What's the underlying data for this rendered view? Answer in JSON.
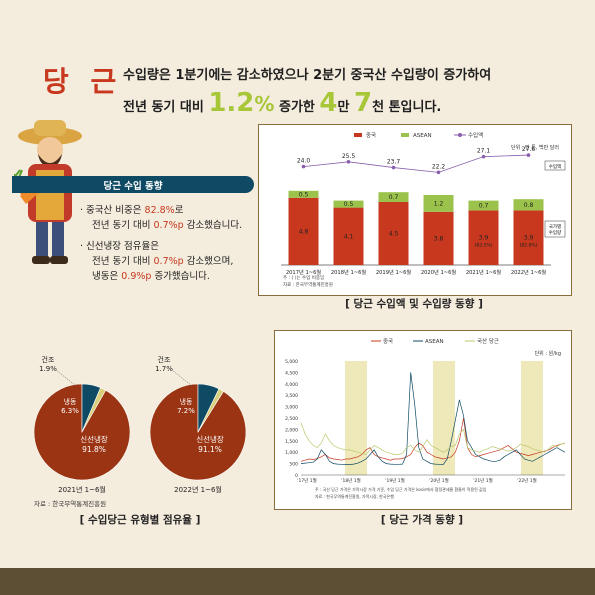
{
  "title": "당 근",
  "headline": {
    "line1": "수입량은 1분기에는 감소하였으나 2분기 중국산 수입량이 증가하여",
    "line2_a": "전년 동기 대비 ",
    "line2_b": "1.2",
    "line2_c": "%",
    "line2_d": " 증가한 ",
    "line2_e": "4",
    "line2_f": "만 ",
    "line2_g": "7",
    "line2_h": "천 톤입니다."
  },
  "status": {
    "title": "당근 수입 동향",
    "b1_a": "· 중국산 비중은 ",
    "b1_b": "82.8%",
    "b1_c": "로",
    "b1_d": "전년 동기 대비 ",
    "b1_e": "0.7%p",
    "b1_f": " 감소했습니다.",
    "b2_a": "· 신선냉장 점유율은",
    "b2_b": "전년 동기 대비 ",
    "b2_c": "0.7%p",
    "b2_d": " 감소했으며,",
    "b2_e": "냉동은 ",
    "b2_f": "0.9%p",
    "b2_g": " 증가했습니다."
  },
  "captions": {
    "chart1": "[ 당근 수입액 및 수입량 동향 ]",
    "chart2": "[ 당근 가격 동향 ]",
    "pies": "[ 수입당근 유형별 점유율 ]"
  },
  "colors": {
    "china": "#c7381e",
    "asean": "#9bc24a",
    "amount": "#8a5fae",
    "fresh": "#9a3412",
    "frozen": "#0e4a63",
    "dried": "#d8cf7a",
    "domestic": "#b6c96c",
    "highlight": "#efe8b8"
  },
  "chart_data": [
    {
      "type": "bar",
      "legend": [
        "중국",
        "ASEAN",
        "수입액"
      ],
      "unit": "단위 : 만 톤, 백만 달러",
      "categories": [
        "2017년 1~6월",
        "2018년 1~6월",
        "2019년 1~6월",
        "2020년 1~6월",
        "2021년 1~6월",
        "2022년 1~6월"
      ],
      "series": [
        {
          "name": "중국",
          "values": [
            4.8,
            4.1,
            4.5,
            3.8,
            3.9,
            3.9
          ]
        },
        {
          "name": "ASEAN",
          "values": [
            0.5,
            0.5,
            0.7,
            1.2,
            0.7,
            0.8
          ]
        },
        {
          "name": "수입액",
          "values": [
            24.0,
            25.5,
            23.7,
            22.2,
            27.1,
            27.6
          ]
        }
      ],
      "share_labels": [
        "",
        "",
        "",
        "",
        "(83.5%)",
        "(82.8%)"
      ],
      "amount_tag": "수입액",
      "china_tag": "국가별\n수입량",
      "notes": [
        "주 : ( )는 수입 비중임",
        "자료 : 한국무역통계진흥원"
      ],
      "ylim": [
        0,
        6
      ]
    },
    {
      "type": "pie",
      "year": "2021년 1~6월",
      "slices": [
        {
          "label": "신선냉장",
          "pct": "91.8%",
          "value": 91.8
        },
        {
          "label": "냉동",
          "pct": "6.3%",
          "value": 6.3
        },
        {
          "label": "건조",
          "pct": "1.9%",
          "value": 1.9
        }
      ]
    },
    {
      "type": "pie",
      "year": "2022년 1~6월",
      "slices": [
        {
          "label": "신선냉장",
          "pct": "91.1%",
          "value": 91.1
        },
        {
          "label": "냉동",
          "pct": "7.2%",
          "value": 7.2
        },
        {
          "label": "건조",
          "pct": "1.7%",
          "value": 1.7
        }
      ]
    },
    {
      "type": "line",
      "legend": [
        "중국",
        "ASEAN",
        "국산 당근"
      ],
      "unit": "단위 : 원/kg",
      "yticks": [
        0,
        500,
        1000,
        1500,
        2000,
        2500,
        3000,
        3500,
        4000,
        4500,
        5000
      ],
      "ylim": [
        0,
        5000
      ],
      "xlabels": [
        "'17년 1월",
        "'18년 1월",
        "'19년 1월",
        "'20년 1월",
        "'21년 1월",
        "'22년 1월"
      ],
      "highlight_bands": [
        [
          1.0,
          1.5
        ],
        [
          3.0,
          3.5
        ],
        [
          5.0,
          5.5
        ]
      ],
      "series": [
        {
          "name": "중국",
          "values": [
            600,
            650,
            700,
            680,
            720,
            800,
            900,
            750,
            700,
            680,
            650,
            700,
            700,
            750,
            800,
            900,
            1100,
            1200,
            900,
            800,
            750,
            700,
            650,
            700,
            700,
            720,
            800,
            900,
            1200,
            1400,
            1300,
            1000,
            900,
            800,
            750,
            700,
            750,
            800,
            1000,
            1500,
            2500,
            1200,
            900,
            800,
            850,
            900,
            950,
            1000,
            1050,
            1100,
            1200,
            1300,
            1150,
            1000,
            950,
            900,
            850,
            900,
            950,
            1000,
            1050,
            1100,
            1200,
            1300,
            1350,
            1400
          ]
        },
        {
          "name": "ASEAN",
          "values": [
            500,
            520,
            540,
            560,
            700,
            1100,
            900,
            600,
            500,
            480,
            470,
            460,
            460,
            480,
            520,
            600,
            700,
            900,
            1100,
            800,
            600,
            500,
            480,
            470,
            470,
            480,
            900,
            4500,
            3100,
            1200,
            700,
            600,
            500,
            480,
            470,
            460,
            700,
            1500,
            2400,
            3300,
            2600,
            1500,
            1200,
            900,
            800,
            700,
            650,
            600,
            600,
            650,
            800,
            900,
            1000,
            1100,
            900,
            700,
            650,
            600,
            700,
            800,
            900,
            1000,
            1100,
            1200,
            1100,
            1000
          ]
        },
        {
          "name": "국산 당근",
          "values": [
            2300,
            1800,
            1500,
            1300,
            1200,
            1400,
            1800,
            1500,
            1300,
            1200,
            1150,
            1100,
            1100,
            1050,
            1000,
            950,
            900,
            1100,
            1300,
            1200,
            1100,
            1000,
            950,
            900,
            900,
            950,
            1200,
            1300,
            1100,
            1000,
            1250,
            1550,
            1300,
            1200,
            1100,
            1000,
            1100,
            1250,
            1300,
            1800,
            2000,
            1200,
            1100,
            1050,
            1000,
            1100,
            1150,
            1250,
            1200,
            1150,
            1100,
            1050,
            1100,
            1200,
            1350,
            1300,
            1250,
            1150,
            1100,
            1050,
            1000,
            1150,
            1300,
            1250,
            1350,
            1400
          ]
        }
      ],
      "notes": [
        "주 : 국산 당근 가격은 가락시장 가격 기준, 수입 당근 가격은 kosis에서 협정관세율 환율이 적용된 값임",
        "자료 : 한국무역통계진흥원, 가락시장, 한국은행"
      ]
    }
  ],
  "pie_source": "자료 : 한국무역통계진흥원"
}
